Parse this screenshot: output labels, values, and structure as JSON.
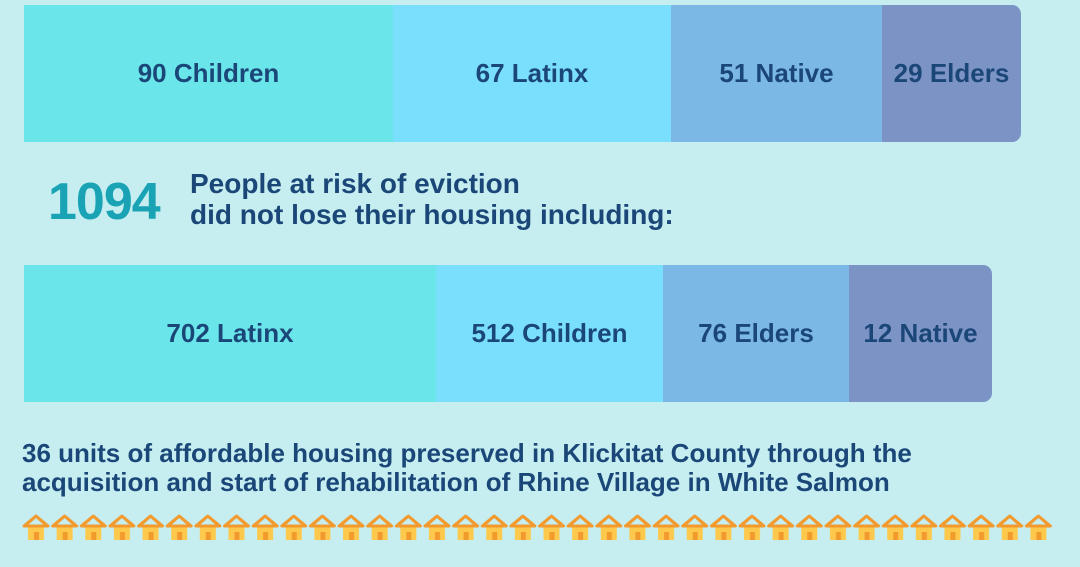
{
  "top_bar": {
    "segments": [
      {
        "label": "90 Children"
      },
      {
        "label": "67 Latinx"
      },
      {
        "label": "51 Native"
      },
      {
        "label": "29 Elders"
      }
    ]
  },
  "stat": {
    "number": 1094,
    "line1": "People at risk of eviction",
    "line2": "did not lose their housing including:"
  },
  "bottom_bar": {
    "segments": [
      {
        "label": "702 Latinx"
      },
      {
        "label": "512 Children"
      },
      {
        "label": "76 Elders"
      },
      {
        "label": "12 Native"
      }
    ]
  },
  "footer": {
    "line1": "36 units of affordable housing preserved in Klickitat County through the",
    "line2": "acquisition and start of rehabilitation of Rhine Village in White Salmon"
  }
}
